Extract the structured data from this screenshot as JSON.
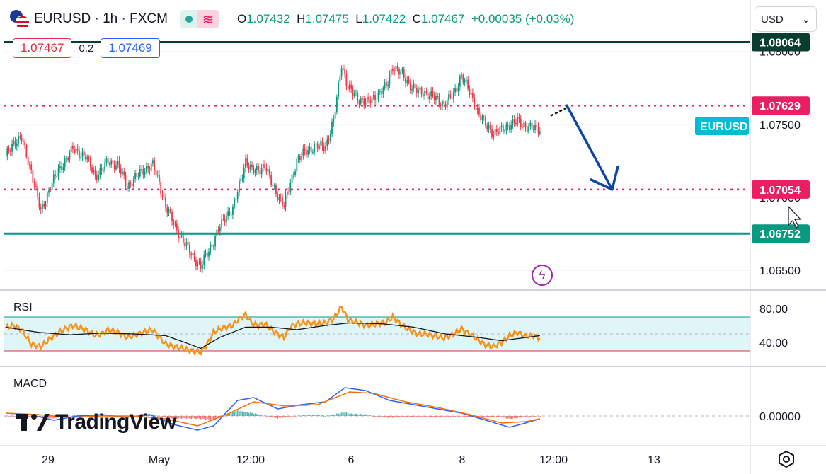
{
  "header": {
    "symbol": "EURUSD · 1h · FXCM",
    "open_label": "O",
    "open": "1.07432",
    "high_label": "H",
    "high": "1.07475",
    "low_label": "L",
    "low": "1.07422",
    "close_label": "C",
    "close": "1.07467",
    "change": "+0.00035 (+0.03%)"
  },
  "quote": {
    "bid": "1.07467",
    "spread": "0.2",
    "ask": "1.07469"
  },
  "currency_select": {
    "value": "USD"
  },
  "colors": {
    "up": "#089981",
    "down": "#f23645",
    "rsi": "#f7931a",
    "macd": "#2962ff",
    "signal": "#ff6d00",
    "resistance": "#e91e63",
    "support": "#089981",
    "arrow": "#0d47a1",
    "top_line": "#0b3d2e"
  },
  "icons": [
    "flag-eu-us-icon",
    "market-open-icon",
    "data-updates-icon",
    "lightning-icon",
    "settings-icon",
    "chevron-down-icon",
    "tradingview-logo-icon"
  ],
  "watermark": "TradingView",
  "panes": {
    "rsi_label": "RSI",
    "macd_label": "MACD"
  },
  "chart_data": {
    "type": "candlestick",
    "symbol": "EURUSD",
    "price_axis": {
      "ticks": [
        "1.08000",
        "1.07500",
        "1.07000",
        "1.06500"
      ],
      "range": [
        1.0638,
        1.0818
      ]
    },
    "time_axis": {
      "labels": [
        "29",
        "May",
        "12:00",
        "6",
        "8",
        "12:00",
        "13"
      ]
    },
    "horizontal_levels": [
      {
        "price": 1.08064,
        "label": "1.08064",
        "style": "solid",
        "role": "top"
      },
      {
        "price": 1.07629,
        "label": "1.07629",
        "style": "dotted",
        "role": "resistance"
      },
      {
        "price": 1.07054,
        "label": "1.07054",
        "style": "dotted",
        "role": "resistance"
      },
      {
        "price": 1.06752,
        "label": "1.06752",
        "style": "solid",
        "role": "support"
      }
    ],
    "last_price_tag": "EURUSD",
    "projection_arrow": {
      "from_price": 1.07629,
      "to_price": 1.07054,
      "direction": "down"
    },
    "close_path": [
      [
        0,
        1.0728
      ],
      [
        5,
        1.0738
      ],
      [
        10,
        1.074
      ],
      [
        16,
        1.0718
      ],
      [
        22,
        1.069
      ],
      [
        28,
        1.0708
      ],
      [
        35,
        1.0722
      ],
      [
        42,
        1.0733
      ],
      [
        50,
        1.0728
      ],
      [
        56,
        1.0715
      ],
      [
        60,
        1.0718
      ],
      [
        64,
        1.0725
      ],
      [
        70,
        1.0722
      ],
      [
        76,
        1.0708
      ],
      [
        80,
        1.0712
      ],
      [
        86,
        1.0719
      ],
      [
        92,
        1.0722
      ],
      [
        96,
        1.071
      ],
      [
        100,
        1.0694
      ],
      [
        106,
        1.068
      ],
      [
        112,
        1.0668
      ],
      [
        117,
        1.066
      ],
      [
        122,
        1.0652
      ],
      [
        126,
        1.0662
      ],
      [
        130,
        1.067
      ],
      [
        134,
        1.068
      ],
      [
        138,
        1.0688
      ],
      [
        142,
        1.0692
      ],
      [
        146,
        1.0708
      ],
      [
        150,
        1.0725
      ],
      [
        154,
        1.0718
      ],
      [
        158,
        1.0719
      ],
      [
        162,
        1.0722
      ],
      [
        166,
        1.071
      ],
      [
        170,
        1.0702
      ],
      [
        174,
        1.0694
      ],
      [
        178,
        1.071
      ],
      [
        182,
        1.0725
      ],
      [
        188,
        1.0732
      ],
      [
        194,
        1.0735
      ],
      [
        200,
        1.0735
      ],
      [
        205,
        1.0752
      ],
      [
        210,
        1.0792
      ],
      [
        214,
        1.0775
      ],
      [
        220,
        1.0768
      ],
      [
        226,
        1.0765
      ],
      [
        232,
        1.077
      ],
      [
        238,
        1.0776
      ],
      [
        242,
        1.079
      ],
      [
        248,
        1.0784
      ],
      [
        252,
        1.0778
      ],
      [
        258,
        1.0772
      ],
      [
        262,
        1.0772
      ],
      [
        268,
        1.0768
      ],
      [
        274,
        1.0764
      ],
      [
        280,
        1.077
      ],
      [
        285,
        1.0784
      ],
      [
        290,
        1.0772
      ],
      [
        296,
        1.0757
      ],
      [
        300,
        1.075
      ],
      [
        305,
        1.0744
      ],
      [
        310,
        1.0746
      ],
      [
        315,
        1.075
      ],
      [
        320,
        1.0752
      ],
      [
        325,
        1.0749
      ],
      [
        330,
        1.0747
      ],
      [
        334,
        1.0747
      ]
    ],
    "rsi": {
      "axis_ticks": [
        "80.00",
        "40.00"
      ],
      "band": [
        30,
        70
      ],
      "values": [
        [
          0,
          57
        ],
        [
          5,
          60
        ],
        [
          10,
          55
        ],
        [
          16,
          38
        ],
        [
          22,
          35
        ],
        [
          28,
          45
        ],
        [
          35,
          54
        ],
        [
          42,
          60
        ],
        [
          50,
          55
        ],
        [
          56,
          48
        ],
        [
          60,
          50
        ],
        [
          64,
          55
        ],
        [
          70,
          52
        ],
        [
          76,
          46
        ],
        [
          80,
          48
        ],
        [
          86,
          52
        ],
        [
          92,
          55
        ],
        [
          96,
          46
        ],
        [
          100,
          38
        ],
        [
          106,
          35
        ],
        [
          112,
          32
        ],
        [
          117,
          30
        ],
        [
          122,
          28
        ],
        [
          126,
          38
        ],
        [
          130,
          52
        ],
        [
          134,
          56
        ],
        [
          138,
          58
        ],
        [
          142,
          60
        ],
        [
          146,
          68
        ],
        [
          150,
          73
        ],
        [
          154,
          62
        ],
        [
          158,
          60
        ],
        [
          162,
          62
        ],
        [
          166,
          55
        ],
        [
          170,
          50
        ],
        [
          174,
          46
        ],
        [
          178,
          58
        ],
        [
          182,
          62
        ],
        [
          188,
          63
        ],
        [
          194,
          62
        ],
        [
          200,
          63
        ],
        [
          205,
          68
        ],
        [
          210,
          82
        ],
        [
          214,
          67
        ],
        [
          220,
          63
        ],
        [
          226,
          60
        ],
        [
          232,
          62
        ],
        [
          238,
          64
        ],
        [
          242,
          70
        ],
        [
          248,
          60
        ],
        [
          252,
          55
        ],
        [
          258,
          50
        ],
        [
          262,
          50
        ],
        [
          268,
          48
        ],
        [
          274,
          45
        ],
        [
          280,
          50
        ],
        [
          285,
          56
        ],
        [
          290,
          50
        ],
        [
          296,
          42
        ],
        [
          300,
          37
        ],
        [
          305,
          35
        ],
        [
          310,
          40
        ],
        [
          315,
          48
        ],
        [
          320,
          52
        ],
        [
          325,
          47
        ],
        [
          330,
          48
        ],
        [
          334,
          45
        ]
      ],
      "ma": [
        [
          0,
          58
        ],
        [
          20,
          52
        ],
        [
          40,
          49
        ],
        [
          60,
          51
        ],
        [
          80,
          50
        ],
        [
          100,
          48
        ],
        [
          112,
          40
        ],
        [
          122,
          33
        ],
        [
          134,
          46
        ],
        [
          150,
          58
        ],
        [
          166,
          58
        ],
        [
          182,
          55
        ],
        [
          200,
          60
        ],
        [
          215,
          63
        ],
        [
          235,
          62
        ],
        [
          255,
          58
        ],
        [
          275,
          50
        ],
        [
          295,
          46
        ],
        [
          310,
          42
        ],
        [
          334,
          48
        ]
      ]
    },
    "macd": {
      "axis_ticks": [
        "0.00000"
      ],
      "macd_line": [
        [
          0,
          0.0002
        ],
        [
          15,
          0.0001
        ],
        [
          30,
          -0.0003
        ],
        [
          45,
          0.0
        ],
        [
          60,
          0.0001
        ],
        [
          75,
          -0.0001
        ],
        [
          90,
          0.0001
        ],
        [
          105,
          -0.0006
        ],
        [
          120,
          -0.001
        ],
        [
          130,
          -0.0007
        ],
        [
          145,
          0.0011
        ],
        [
          155,
          0.0013
        ],
        [
          170,
          0.0005
        ],
        [
          185,
          0.0008
        ],
        [
          200,
          0.001
        ],
        [
          212,
          0.002
        ],
        [
          225,
          0.0018
        ],
        [
          240,
          0.0011
        ],
        [
          255,
          0.0008
        ],
        [
          270,
          0.0005
        ],
        [
          285,
          0.0002
        ],
        [
          300,
          -0.0003
        ],
        [
          315,
          -0.0008
        ],
        [
          325,
          -0.0005
        ],
        [
          334,
          -0.0002
        ]
      ],
      "signal_line": [
        [
          0,
          0.0002
        ],
        [
          20,
          0.0001
        ],
        [
          40,
          -0.0001
        ],
        [
          60,
          0.0
        ],
        [
          80,
          0.0
        ],
        [
          100,
          -0.0002
        ],
        [
          120,
          -0.0007
        ],
        [
          140,
          0.0002
        ],
        [
          155,
          0.001
        ],
        [
          175,
          0.0007
        ],
        [
          195,
          0.0008
        ],
        [
          215,
          0.0017
        ],
        [
          230,
          0.0016
        ],
        [
          250,
          0.001
        ],
        [
          270,
          0.0006
        ],
        [
          290,
          0.0001
        ],
        [
          310,
          -0.0005
        ],
        [
          325,
          -0.0004
        ],
        [
          334,
          -0.0002
        ]
      ]
    }
  }
}
